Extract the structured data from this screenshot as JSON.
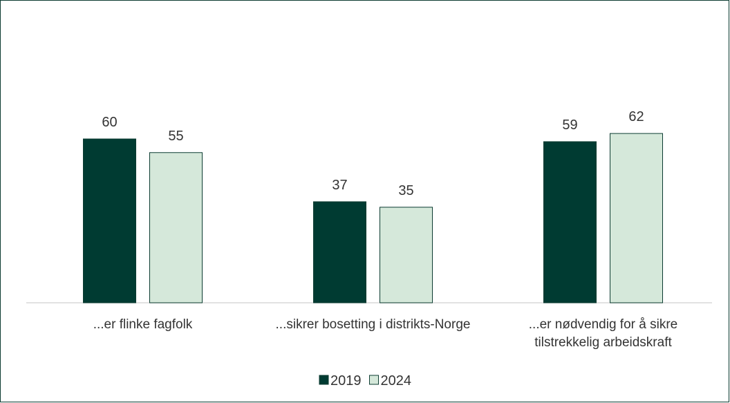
{
  "chart_data": {
    "type": "bar",
    "categories": [
      "...er flinke fagfolk",
      "...sikrer bosetting i distrikts-Norge",
      "...er nødvendig for å sikre tilstrekkelig arbeidskraft"
    ],
    "series": [
      {
        "name": "2019",
        "color": "#003b32",
        "values": [
          60,
          37,
          59
        ]
      },
      {
        "name": "2024",
        "color": "#d5e8da",
        "values": [
          55,
          35,
          62
        ]
      }
    ],
    "legend": "bottom"
  }
}
